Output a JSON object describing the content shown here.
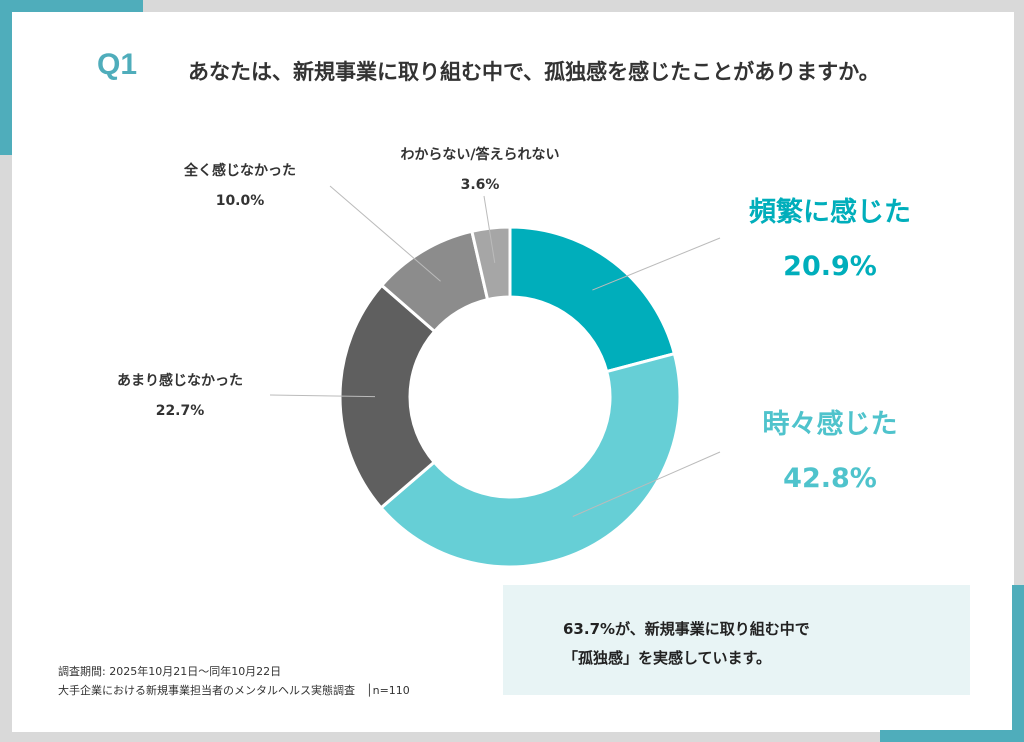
{
  "header": {
    "question_no": "Q1",
    "question": "あなたは、新規事業に取り組む中で、孤独感を感じたことがありますか。"
  },
  "chart_data": {
    "type": "pie",
    "variant": "donut",
    "title": "あなたは、新規事業に取り組む中で、孤独感を感じたことがありますか。",
    "categories": [
      "頻繁に感じた",
      "時々感じた",
      "あまり感じなかった",
      "全く感じなかった",
      "わからない/答えられない"
    ],
    "values": [
      20.9,
      42.8,
      22.7,
      10.0,
      3.6
    ],
    "value_labels": [
      "20.9%",
      "42.8%",
      "22.7%",
      "10.0%",
      "3.6%"
    ],
    "colors": [
      "#00aebb",
      "#66cfd6",
      "#5f5f5f",
      "#8c8c8c",
      "#a6a6a6"
    ],
    "start": "top",
    "direction": "clockwise"
  },
  "summary": {
    "line1": "63.7%が、新規事業に取り組む中で",
    "line2": "「孤独感」を実感しています。"
  },
  "footer": {
    "period": "調査期間: 2025年10月21日～同年10月22日",
    "survey": "大手企業における新規事業担当者のメンタルヘルス実態調査　│n=110"
  }
}
